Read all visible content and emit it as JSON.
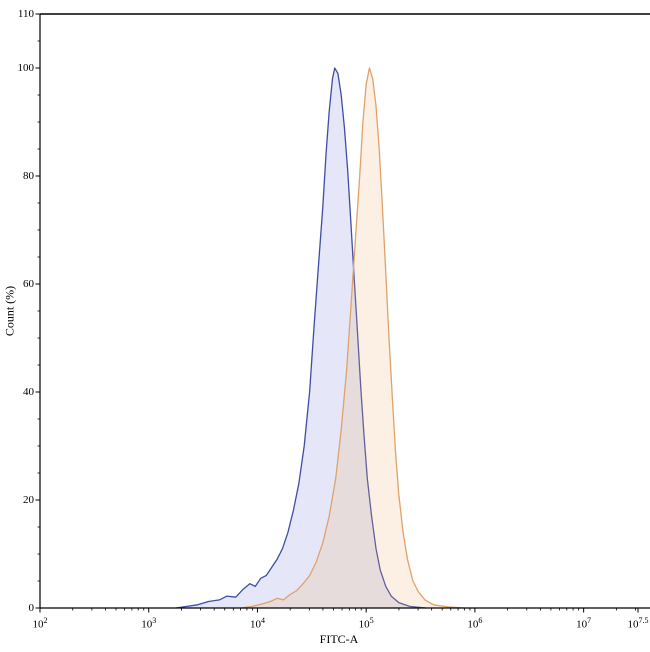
{
  "chart_data": {
    "type": "area",
    "title": "",
    "xlabel": "FITC-A",
    "ylabel": "Count  (%)",
    "x_scale": "log10",
    "xlim_log10": [
      2,
      7.5
    ],
    "ylim": [
      0,
      110
    ],
    "grid": false,
    "legend": "none",
    "axis_color": "#000000",
    "x_axis": {
      "base": "10",
      "ticks": [
        {
          "log10": 2,
          "exp": "2"
        },
        {
          "log10": 3,
          "exp": "3"
        },
        {
          "log10": 4,
          "exp": "4"
        },
        {
          "log10": 5,
          "exp": "5"
        },
        {
          "log10": 6,
          "exp": "6"
        },
        {
          "log10": 7,
          "exp": "7"
        },
        {
          "log10": 7.5,
          "exp": "7.5"
        }
      ]
    },
    "y_axis": {
      "ticks": [
        0,
        20,
        40,
        60,
        80,
        100,
        110
      ],
      "minor_step": 5
    },
    "series": [
      {
        "name": "series-blue",
        "color": "#3f4da6",
        "fill": "rgba(98,107,205,0.17)",
        "peak_x_log10": 4.71,
        "peak_y": 100,
        "points": [
          [
            3.25,
            0
          ],
          [
            3.35,
            0.3
          ],
          [
            3.45,
            0.6
          ],
          [
            3.55,
            1.2
          ],
          [
            3.65,
            1.5
          ],
          [
            3.72,
            2.2
          ],
          [
            3.8,
            2.0
          ],
          [
            3.87,
            3.5
          ],
          [
            3.93,
            4.5
          ],
          [
            3.98,
            4.0
          ],
          [
            4.03,
            5.5
          ],
          [
            4.08,
            6.0
          ],
          [
            4.13,
            7.5
          ],
          [
            4.18,
            9
          ],
          [
            4.23,
            11
          ],
          [
            4.28,
            14
          ],
          [
            4.33,
            18
          ],
          [
            4.38,
            23
          ],
          [
            4.43,
            30
          ],
          [
            4.48,
            40
          ],
          [
            4.52,
            52
          ],
          [
            4.56,
            63
          ],
          [
            4.6,
            74
          ],
          [
            4.63,
            84
          ],
          [
            4.66,
            92
          ],
          [
            4.69,
            98
          ],
          [
            4.71,
            100
          ],
          [
            4.74,
            99
          ],
          [
            4.77,
            95
          ],
          [
            4.8,
            89
          ],
          [
            4.83,
            81
          ],
          [
            4.86,
            71
          ],
          [
            4.89,
            61
          ],
          [
            4.92,
            51
          ],
          [
            4.95,
            41
          ],
          [
            4.98,
            32
          ],
          [
            5.01,
            24
          ],
          [
            5.05,
            17
          ],
          [
            5.09,
            11
          ],
          [
            5.13,
            7
          ],
          [
            5.18,
            4
          ],
          [
            5.23,
            2.2
          ],
          [
            5.3,
            1
          ],
          [
            5.4,
            0.3
          ],
          [
            5.55,
            0
          ]
        ]
      },
      {
        "name": "series-orange",
        "color": "#dfa26b",
        "fill": "rgba(235,178,115,0.20)",
        "peak_x_log10": 5.03,
        "peak_y": 100,
        "points": [
          [
            3.85,
            0
          ],
          [
            3.95,
            0.3
          ],
          [
            4.05,
            0.8
          ],
          [
            4.12,
            1.2
          ],
          [
            4.18,
            1.8
          ],
          [
            4.24,
            1.5
          ],
          [
            4.3,
            2.5
          ],
          [
            4.36,
            3.2
          ],
          [
            4.42,
            4.5
          ],
          [
            4.48,
            6
          ],
          [
            4.54,
            8.5
          ],
          [
            4.6,
            12
          ],
          [
            4.66,
            17
          ],
          [
            4.72,
            24
          ],
          [
            4.77,
            33
          ],
          [
            4.82,
            44
          ],
          [
            4.86,
            56
          ],
          [
            4.9,
            68
          ],
          [
            4.94,
            80
          ],
          [
            4.97,
            90
          ],
          [
            5.0,
            97
          ],
          [
            5.03,
            100
          ],
          [
            5.06,
            98
          ],
          [
            5.09,
            93
          ],
          [
            5.12,
            85
          ],
          [
            5.15,
            74
          ],
          [
            5.18,
            62
          ],
          [
            5.21,
            50
          ],
          [
            5.24,
            39
          ],
          [
            5.27,
            29
          ],
          [
            5.3,
            21
          ],
          [
            5.34,
            14
          ],
          [
            5.38,
            9
          ],
          [
            5.43,
            5
          ],
          [
            5.48,
            3
          ],
          [
            5.54,
            1.5
          ],
          [
            5.62,
            0.6
          ],
          [
            5.75,
            0.2
          ],
          [
            5.9,
            0
          ]
        ]
      }
    ]
  }
}
